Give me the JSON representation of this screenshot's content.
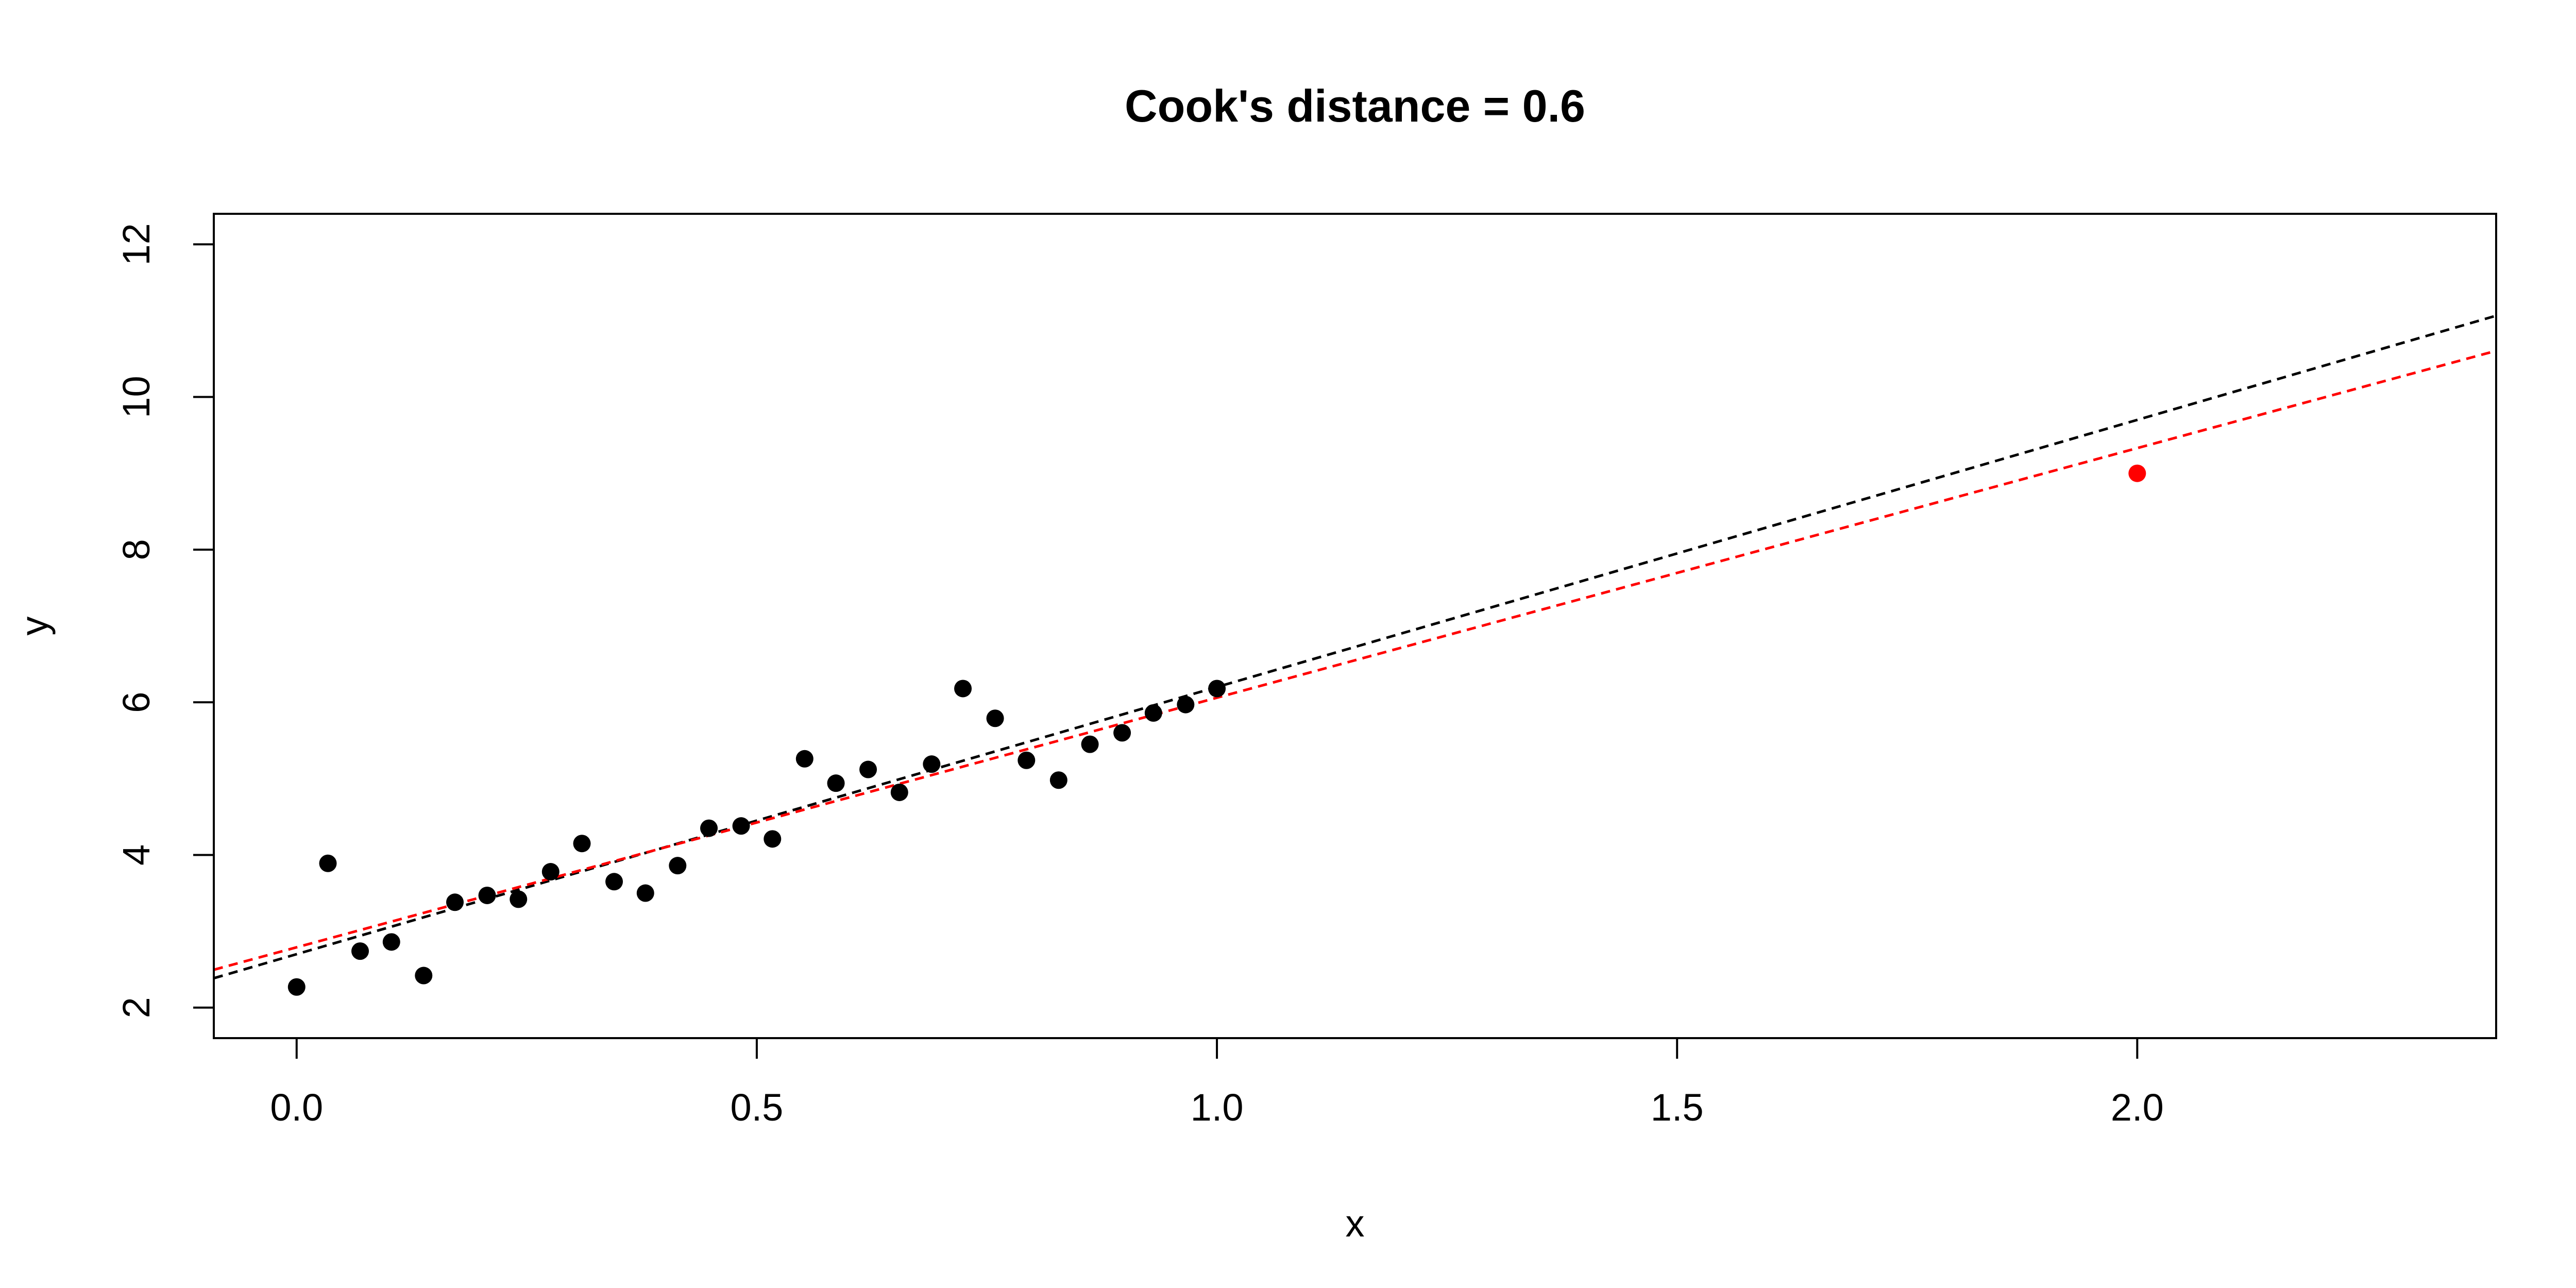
{
  "chart_data": {
    "type": "scatter",
    "title": "Cook's distance = 0.6",
    "xlabel": "x",
    "ylabel": "y",
    "xlim": [
      -0.09,
      2.39
    ],
    "ylim": [
      1.6,
      12.4
    ],
    "xticks": [
      0.0,
      0.5,
      1.0,
      1.5,
      2.0
    ],
    "xtick_labels": [
      "0.0",
      "0.5",
      "1.0",
      "1.5",
      "2.0"
    ],
    "yticks": [
      2,
      4,
      6,
      8,
      10,
      12
    ],
    "ytick_labels": [
      "2",
      "4",
      "6",
      "8",
      "10",
      "12"
    ],
    "grid": false,
    "legend": "none",
    "colors": {
      "points": "#000000",
      "highlight": "#ff0000",
      "fit_all": "#000000",
      "fit_without": "#ff0000"
    },
    "series": [
      {
        "color": "#000000",
        "points": [
          [
            0.0,
            2.27
          ],
          [
            0.034,
            3.89
          ],
          [
            0.069,
            2.74
          ],
          [
            0.103,
            2.86
          ],
          [
            0.138,
            2.42
          ],
          [
            0.172,
            3.38
          ],
          [
            0.207,
            3.47
          ],
          [
            0.241,
            3.42
          ],
          [
            0.276,
            3.78
          ],
          [
            0.31,
            4.15
          ],
          [
            0.345,
            3.65
          ],
          [
            0.379,
            3.5
          ],
          [
            0.414,
            3.86
          ],
          [
            0.448,
            4.35
          ],
          [
            0.483,
            4.38
          ],
          [
            0.517,
            4.21
          ],
          [
            0.552,
            5.26
          ],
          [
            0.586,
            4.94
          ],
          [
            0.621,
            5.12
          ],
          [
            0.655,
            4.82
          ],
          [
            0.69,
            5.19
          ],
          [
            0.724,
            6.18
          ],
          [
            0.759,
            5.79
          ],
          [
            0.793,
            5.24
          ],
          [
            0.828,
            4.98
          ],
          [
            0.862,
            5.45
          ],
          [
            0.897,
            5.6
          ],
          [
            0.931,
            5.86
          ],
          [
            0.966,
            5.97
          ],
          [
            1.0,
            6.18
          ]
        ]
      },
      {
        "color": "#ff0000",
        "points": [
          [
            2.0,
            9.0
          ]
        ]
      }
    ],
    "lines": [
      {
        "color": "#000000",
        "style": "dashed",
        "intercept": 2.7,
        "slope": 3.5
      },
      {
        "color": "#ff0000",
        "style": "dashed",
        "intercept": 2.79,
        "slope": 3.27
      }
    ]
  }
}
